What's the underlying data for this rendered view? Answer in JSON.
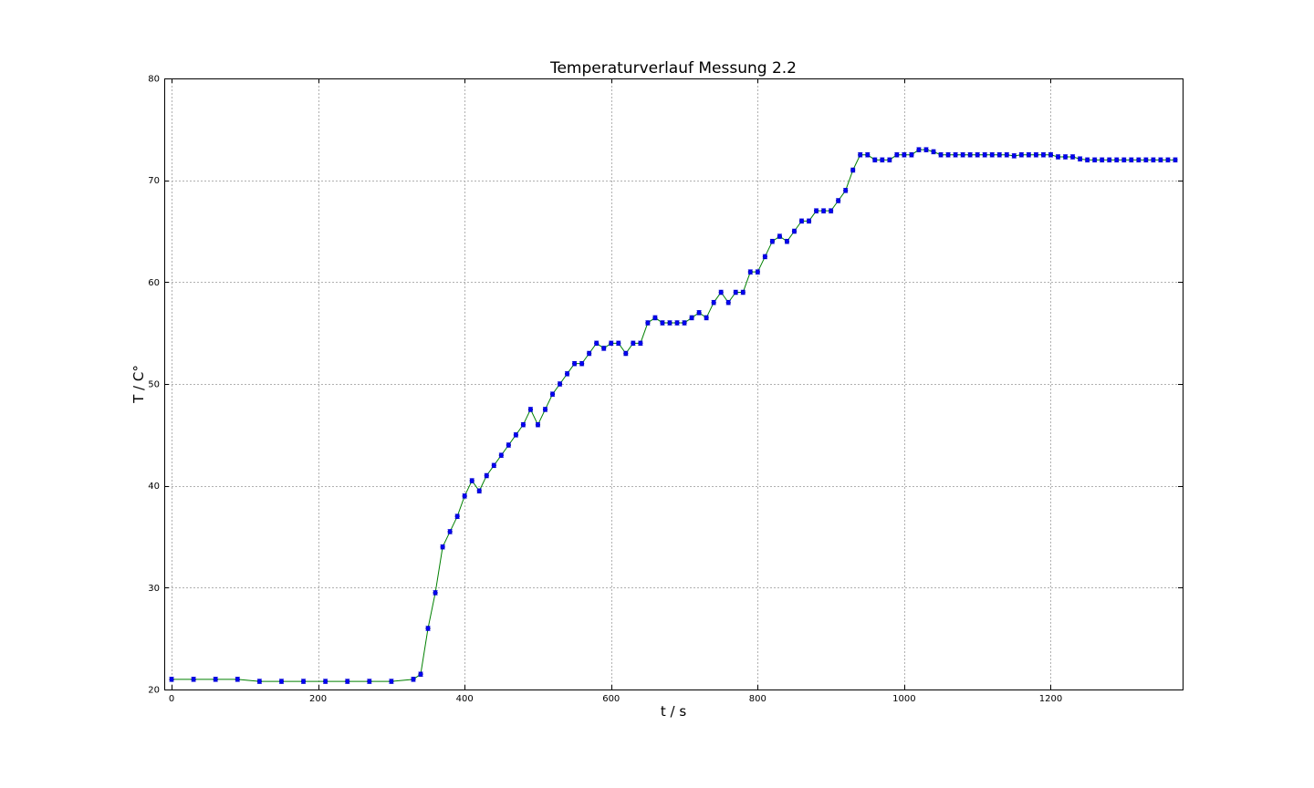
{
  "chart_data": {
    "type": "line",
    "title": "Temperaturverlauf Messung 2.2",
    "xlabel": "t / s",
    "ylabel": "T / C°",
    "xlim": [
      -10,
      1380
    ],
    "ylim": [
      20,
      80
    ],
    "grid": true,
    "x_ticks": [
      0,
      200,
      400,
      600,
      800,
      1000,
      1200
    ],
    "y_ticks": [
      20,
      30,
      40,
      50,
      60,
      70,
      80
    ],
    "series": [
      {
        "line_color": "#008000",
        "marker_color": "#0000ff",
        "error": 0.2,
        "x": [
          0,
          30,
          60,
          90,
          120,
          150,
          180,
          210,
          240,
          270,
          300,
          330,
          340,
          350,
          360,
          370,
          380,
          390,
          400,
          410,
          420,
          430,
          440,
          450,
          460,
          470,
          480,
          490,
          500,
          510,
          520,
          530,
          540,
          550,
          560,
          570,
          580,
          590,
          600,
          610,
          620,
          630,
          640,
          650,
          660,
          670,
          680,
          690,
          700,
          710,
          720,
          730,
          740,
          750,
          760,
          770,
          780,
          790,
          800,
          810,
          820,
          830,
          840,
          850,
          860,
          870,
          880,
          890,
          900,
          910,
          920,
          930,
          940,
          950,
          960,
          970,
          980,
          990,
          1000,
          1010,
          1020,
          1030,
          1040,
          1050,
          1060,
          1070,
          1080,
          1090,
          1100,
          1110,
          1120,
          1130,
          1140,
          1150,
          1160,
          1170,
          1180,
          1190,
          1200,
          1210,
          1220,
          1230,
          1240,
          1250,
          1260,
          1270,
          1280,
          1290,
          1300,
          1310,
          1320,
          1330,
          1340,
          1350,
          1360,
          1370
        ],
        "y": [
          21.0,
          21.0,
          21.0,
          21.0,
          20.8,
          20.8,
          20.8,
          20.8,
          20.8,
          20.8,
          20.8,
          21.0,
          21.5,
          26.0,
          29.5,
          34.0,
          35.5,
          37.0,
          39.0,
          40.5,
          39.5,
          41.0,
          42.0,
          43.0,
          44.0,
          45.0,
          46.0,
          47.5,
          46.0,
          47.5,
          49.0,
          50.0,
          51.0,
          52.0,
          52.0,
          53.0,
          54.0,
          53.5,
          54.0,
          54.0,
          53.0,
          54.0,
          54.0,
          56.0,
          56.5,
          56.0,
          56.0,
          56.0,
          56.0,
          56.5,
          57.0,
          56.5,
          58.0,
          59.0,
          58.0,
          59.0,
          59.0,
          61.0,
          61.0,
          62.5,
          64.0,
          64.5,
          64.0,
          65.0,
          66.0,
          66.0,
          67.0,
          67.0,
          67.0,
          68.0,
          69.0,
          71.0,
          72.5,
          72.5,
          72.0,
          72.0,
          72.0,
          72.5,
          72.5,
          72.5,
          73.0,
          73.0,
          72.8,
          72.5,
          72.5,
          72.5,
          72.5,
          72.5,
          72.5,
          72.5,
          72.5,
          72.5,
          72.5,
          72.4,
          72.5,
          72.5,
          72.5,
          72.5,
          72.5,
          72.3,
          72.3,
          72.3,
          72.1,
          72.0,
          72.0,
          72.0,
          72.0,
          72.0,
          72.0,
          72.0,
          72.0,
          72.0,
          72.0,
          72.0,
          72.0,
          72.0
        ]
      }
    ]
  }
}
